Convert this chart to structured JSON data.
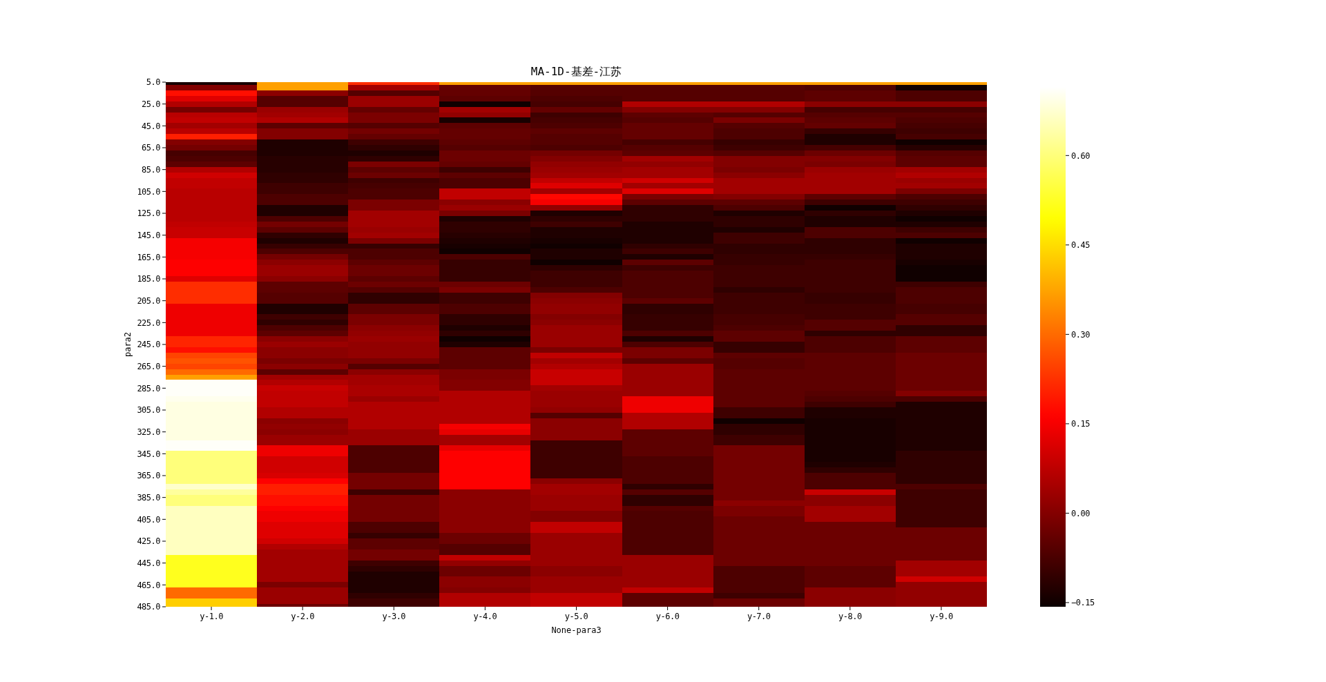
{
  "chart_data": {
    "type": "heatmap",
    "title": "MA-1D-基差-江苏",
    "xlabel": "None-para3",
    "ylabel": "para2",
    "categories": [
      "y-1.0",
      "y-2.0",
      "y-3.0",
      "y-4.0",
      "y-5.0",
      "y-6.0",
      "y-7.0",
      "y-8.0",
      "y-9.0"
    ],
    "y_categories": [
      "5.0",
      null,
      null,
      null,
      "25.0",
      null,
      null,
      null,
      "45.0",
      null,
      null,
      null,
      "65.0",
      null,
      null,
      null,
      "85.0",
      null,
      null,
      null,
      "105.0",
      null,
      null,
      null,
      "125.0",
      null,
      null,
      null,
      "145.0",
      null,
      null,
      null,
      "165.0",
      null,
      null,
      null,
      "185.0",
      null,
      null,
      null,
      "205.0",
      null,
      null,
      null,
      "225.0",
      null,
      null,
      null,
      "245.0",
      null,
      null,
      null,
      "265.0",
      null,
      null,
      null,
      "285.0",
      null,
      null,
      null,
      "305.0",
      null,
      null,
      null,
      "325.0",
      null,
      null,
      null,
      "345.0",
      null,
      null,
      null,
      "365.0",
      null,
      null,
      null,
      "385.0",
      null,
      null,
      null,
      "405.0",
      null,
      null,
      null,
      "425.0",
      null,
      null,
      null,
      "445.0",
      null,
      null,
      null,
      "465.0",
      null,
      null,
      null,
      "485.0"
    ],
    "cells": [
      [
        -0.14,
        0.37,
        0.22,
        0.37,
        0.37,
        0.37,
        0.37,
        0.37,
        0.37
      ],
      [
        0.0,
        0.37,
        0.04,
        -0.04,
        -0.06,
        -0.06,
        -0.06,
        -0.07,
        -0.15
      ],
      [
        0.18,
        0.01,
        -0.06,
        -0.04,
        -0.06,
        -0.06,
        -0.06,
        -0.05,
        -0.07
      ],
      [
        0.12,
        -0.06,
        0.03,
        -0.05,
        -0.07,
        -0.06,
        -0.06,
        -0.05,
        -0.07
      ],
      [
        0.06,
        -0.06,
        0.03,
        -0.15,
        -0.08,
        0.06,
        0.06,
        0.01,
        0.01
      ],
      [
        -0.02,
        0.03,
        -0.04,
        0.04,
        -0.04,
        0.0,
        0.0,
        -0.08,
        -0.08
      ],
      [
        0.07,
        0.04,
        -0.01,
        0.02,
        -0.09,
        -0.05,
        -0.06,
        -0.06,
        -0.06
      ],
      [
        0.08,
        0.06,
        -0.01,
        -0.14,
        -0.08,
        -0.06,
        -0.01,
        -0.05,
        -0.07
      ],
      [
        0.04,
        -0.05,
        -0.06,
        -0.05,
        -0.07,
        -0.04,
        -0.06,
        -0.04,
        -0.08
      ],
      [
        0.07,
        0.0,
        -0.02,
        -0.04,
        -0.05,
        -0.04,
        -0.07,
        -0.1,
        -0.09
      ],
      [
        0.2,
        0.0,
        -0.04,
        -0.04,
        -0.06,
        -0.04,
        -0.07,
        -0.13,
        -0.08
      ],
      [
        0.0,
        -0.13,
        -0.09,
        -0.05,
        -0.06,
        -0.08,
        -0.1,
        -0.13,
        -0.15
      ],
      [
        -0.02,
        -0.13,
        -0.11,
        -0.06,
        -0.07,
        -0.06,
        -0.09,
        -0.08,
        -0.12
      ],
      [
        -0.08,
        -0.13,
        -0.13,
        -0.03,
        -0.02,
        -0.05,
        -0.06,
        -0.03,
        -0.06
      ],
      [
        -0.07,
        -0.12,
        -0.11,
        -0.03,
        0.0,
        0.04,
        0.0,
        0.0,
        -0.05
      ],
      [
        -0.05,
        -0.12,
        -0.01,
        -0.04,
        0.02,
        0.02,
        0.0,
        -0.01,
        -0.05
      ],
      [
        0.06,
        -0.12,
        -0.05,
        -0.09,
        0.03,
        0.04,
        -0.01,
        0.03,
        0.04
      ],
      [
        0.1,
        -0.11,
        -0.03,
        -0.05,
        0.04,
        0.04,
        0.01,
        0.04,
        0.06
      ],
      [
        0.08,
        -0.11,
        -0.09,
        -0.07,
        0.08,
        0.1,
        0.04,
        0.04,
        0.03
      ],
      [
        0.08,
        -0.09,
        -0.08,
        -0.07,
        0.12,
        0.04,
        0.04,
        0.04,
        0.04
      ],
      [
        0.07,
        -0.09,
        -0.07,
        0.08,
        0.04,
        0.12,
        0.04,
        0.04,
        -0.01
      ],
      [
        0.07,
        -0.07,
        -0.07,
        0.08,
        0.17,
        -0.01,
        0.0,
        -0.05,
        -0.07
      ],
      [
        0.07,
        -0.07,
        -0.01,
        0.01,
        0.15,
        -0.05,
        -0.05,
        -0.09,
        -0.09
      ],
      [
        0.07,
        -0.13,
        -0.01,
        0.03,
        0.02,
        -0.11,
        -0.07,
        -0.15,
        -0.11
      ],
      [
        0.07,
        -0.13,
        0.04,
        -0.01,
        -0.13,
        -0.11,
        -0.13,
        -0.11,
        -0.13
      ],
      [
        0.07,
        -0.07,
        0.04,
        -0.13,
        -0.11,
        -0.11,
        -0.11,
        -0.13,
        -0.15
      ],
      [
        0.08,
        -0.02,
        0.04,
        -0.11,
        -0.09,
        -0.13,
        -0.11,
        -0.13,
        -0.13
      ],
      [
        0.09,
        -0.05,
        0.03,
        -0.11,
        -0.13,
        -0.13,
        -0.13,
        -0.07,
        -0.09
      ],
      [
        0.09,
        -0.11,
        0.04,
        -0.12,
        -0.13,
        -0.13,
        -0.09,
        -0.07,
        -0.07
      ],
      [
        0.15,
        -0.13,
        -0.01,
        -0.13,
        -0.14,
        -0.13,
        -0.09,
        -0.11,
        -0.15
      ],
      [
        0.15,
        -0.1,
        -0.1,
        -0.14,
        -0.15,
        -0.11,
        -0.11,
        -0.11,
        -0.13
      ],
      [
        0.15,
        -0.07,
        -0.07,
        -0.15,
        -0.13,
        -0.09,
        -0.11,
        -0.11,
        -0.13
      ],
      [
        0.15,
        -0.02,
        -0.07,
        -0.07,
        -0.13,
        -0.13,
        -0.1,
        -0.1,
        -0.13
      ],
      [
        0.16,
        0.01,
        -0.05,
        -0.1,
        -0.15,
        -0.05,
        -0.1,
        -0.09,
        -0.14
      ],
      [
        0.16,
        0.03,
        -0.03,
        -0.1,
        -0.11,
        -0.09,
        -0.09,
        -0.09,
        -0.15
      ],
      [
        0.16,
        0.03,
        -0.03,
        -0.1,
        -0.09,
        -0.07,
        -0.09,
        -0.09,
        -0.15
      ],
      [
        0.12,
        0.01,
        -0.05,
        -0.1,
        -0.09,
        -0.07,
        -0.09,
        -0.09,
        -0.15
      ],
      [
        0.22,
        -0.05,
        -0.03,
        -0.03,
        -0.09,
        -0.07,
        -0.09,
        -0.09,
        -0.09
      ],
      [
        0.22,
        -0.05,
        -0.06,
        -0.01,
        -0.07,
        -0.07,
        -0.11,
        -0.09,
        -0.07
      ],
      [
        0.22,
        -0.06,
        -0.11,
        -0.09,
        0.0,
        -0.07,
        -0.09,
        -0.1,
        -0.07
      ],
      [
        0.22,
        -0.06,
        -0.11,
        -0.09,
        0.01,
        -0.05,
        -0.09,
        -0.1,
        -0.07
      ],
      [
        0.14,
        -0.13,
        -0.05,
        -0.07,
        0.02,
        -0.11,
        -0.09,
        -0.09,
        -0.08
      ],
      [
        0.14,
        -0.13,
        -0.05,
        -0.07,
        0.02,
        -0.11,
        -0.09,
        -0.09,
        -0.08
      ],
      [
        0.14,
        -0.09,
        -0.01,
        -0.11,
        0.0,
        -0.1,
        -0.08,
        -0.09,
        -0.06
      ],
      [
        0.14,
        -0.11,
        -0.01,
        -0.11,
        0.01,
        -0.1,
        -0.08,
        -0.06,
        -0.06
      ],
      [
        0.14,
        -0.07,
        0.01,
        -0.13,
        0.03,
        -0.1,
        -0.07,
        -0.06,
        -0.11
      ],
      [
        0.14,
        -0.05,
        0.02,
        -0.11,
        0.03,
        -0.07,
        -0.05,
        -0.11,
        -0.11
      ],
      [
        0.21,
        0.01,
        0.03,
        -0.15,
        0.03,
        -0.13,
        -0.05,
        -0.07,
        -0.05
      ],
      [
        0.21,
        0.03,
        0.02,
        -0.13,
        0.03,
        -0.07,
        -0.1,
        -0.07,
        -0.05
      ],
      [
        0.18,
        0.01,
        0.02,
        -0.05,
        -0.01,
        -0.01,
        -0.1,
        -0.07,
        -0.05
      ],
      [
        0.25,
        0.01,
        0.02,
        -0.05,
        0.08,
        -0.01,
        -0.05,
        -0.05,
        -0.03
      ],
      [
        0.27,
        -0.01,
        -0.01,
        -0.05,
        0.04,
        -0.05,
        -0.06,
        -0.05,
        -0.03
      ],
      [
        0.25,
        0.01,
        -0.06,
        -0.05,
        0.06,
        0.03,
        -0.06,
        -0.05,
        -0.03
      ],
      [
        0.3,
        -0.05,
        0.01,
        -0.01,
        0.09,
        0.03,
        -0.05,
        -0.05,
        -0.03
      ],
      [
        0.37,
        0.04,
        0.04,
        -0.01,
        0.09,
        0.03,
        -0.05,
        -0.05,
        -0.03
      ],
      [
        0.71,
        0.06,
        0.04,
        0.0,
        0.09,
        0.03,
        -0.05,
        -0.05,
        -0.03
      ],
      [
        0.71,
        0.09,
        0.05,
        0.0,
        0.04,
        0.03,
        -0.05,
        -0.05,
        -0.03
      ],
      [
        0.71,
        0.08,
        0.05,
        0.06,
        0.03,
        0.03,
        -0.05,
        -0.06,
        0.0
      ],
      [
        0.7,
        0.08,
        0.03,
        0.06,
        0.03,
        0.14,
        -0.05,
        -0.07,
        -0.07
      ],
      [
        0.69,
        0.08,
        0.06,
        0.06,
        0.03,
        0.14,
        -0.05,
        -0.09,
        -0.13
      ],
      [
        0.69,
        0.06,
        0.06,
        0.06,
        0.02,
        0.14,
        -0.09,
        -0.13,
        -0.13
      ],
      [
        0.69,
        0.06,
        0.06,
        0.06,
        -0.06,
        0.06,
        -0.09,
        -0.13,
        -0.13
      ],
      [
        0.69,
        0.01,
        0.06,
        0.06,
        0.01,
        0.06,
        -0.15,
        -0.14,
        -0.13
      ],
      [
        0.69,
        0.02,
        0.06,
        0.15,
        0.01,
        0.06,
        -0.11,
        -0.14,
        -0.13
      ],
      [
        0.69,
        0.01,
        0.03,
        0.13,
        0.01,
        -0.05,
        -0.11,
        -0.14,
        -0.13
      ],
      [
        0.69,
        0.03,
        0.03,
        0.04,
        0.01,
        -0.05,
        -0.09,
        -0.14,
        -0.13
      ],
      [
        0.71,
        0.03,
        0.03,
        0.04,
        -0.09,
        -0.05,
        -0.09,
        -0.14,
        -0.13
      ],
      [
        0.71,
        0.14,
        -0.07,
        0.13,
        -0.09,
        -0.05,
        -0.02,
        -0.14,
        -0.13
      ],
      [
        0.6,
        0.14,
        -0.07,
        0.16,
        -0.09,
        -0.05,
        -0.02,
        -0.14,
        -0.11
      ],
      [
        0.6,
        0.1,
        -0.07,
        0.16,
        -0.09,
        -0.07,
        -0.02,
        -0.14,
        -0.11
      ],
      [
        0.6,
        0.1,
        -0.07,
        0.16,
        -0.09,
        -0.07,
        -0.02,
        -0.13,
        -0.11
      ],
      [
        0.6,
        0.1,
        -0.07,
        0.16,
        -0.09,
        -0.07,
        -0.02,
        -0.11,
        -0.11
      ],
      [
        0.6,
        0.11,
        -0.02,
        0.16,
        -0.09,
        -0.07,
        -0.02,
        -0.07,
        -0.11
      ],
      [
        0.6,
        0.16,
        -0.02,
        0.16,
        0.01,
        -0.07,
        -0.02,
        -0.07,
        -0.11
      ],
      [
        0.67,
        0.2,
        -0.02,
        0.16,
        0.04,
        -0.11,
        -0.02,
        -0.07,
        -0.07
      ],
      [
        0.63,
        0.2,
        -0.09,
        0.01,
        0.04,
        -0.06,
        -0.02,
        0.09,
        -0.09
      ],
      [
        0.6,
        0.18,
        -0.02,
        0.01,
        0.03,
        -0.11,
        -0.02,
        0.01,
        -0.09
      ],
      [
        0.6,
        0.18,
        -0.02,
        0.01,
        0.03,
        -0.11,
        0.01,
        0.01,
        -0.09
      ],
      [
        0.66,
        0.16,
        -0.02,
        0.01,
        0.03,
        -0.06,
        -0.01,
        0.04,
        -0.09
      ],
      [
        0.66,
        0.14,
        -0.02,
        0.01,
        0.0,
        -0.07,
        -0.01,
        0.04,
        -0.09
      ],
      [
        0.66,
        0.14,
        -0.02,
        0.01,
        0.0,
        -0.07,
        -0.03,
        0.04,
        -0.09
      ],
      [
        0.66,
        0.12,
        -0.07,
        0.01,
        0.08,
        -0.07,
        -0.03,
        -0.03,
        -0.09
      ],
      [
        0.66,
        0.12,
        -0.07,
        0.01,
        0.08,
        -0.07,
        -0.03,
        -0.03,
        -0.03
      ],
      [
        0.66,
        0.12,
        -0.1,
        -0.03,
        0.03,
        -0.07,
        -0.03,
        -0.03,
        -0.03
      ],
      [
        0.66,
        0.1,
        -0.05,
        -0.03,
        0.03,
        -0.07,
        -0.03,
        -0.03,
        -0.03
      ],
      [
        0.66,
        0.06,
        -0.05,
        -0.06,
        0.03,
        -0.07,
        -0.03,
        -0.03,
        -0.03
      ],
      [
        0.66,
        0.04,
        -0.02,
        -0.06,
        0.03,
        -0.07,
        -0.03,
        -0.03,
        -0.03
      ],
      [
        0.52,
        0.04,
        -0.02,
        0.08,
        0.03,
        0.03,
        -0.03,
        -0.03,
        -0.03
      ],
      [
        0.52,
        0.04,
        -0.09,
        0.02,
        0.03,
        0.03,
        -0.03,
        -0.03,
        0.04
      ],
      [
        0.52,
        0.04,
        -0.11,
        -0.03,
        0.01,
        0.03,
        -0.07,
        -0.05,
        0.04
      ],
      [
        0.52,
        0.04,
        -0.13,
        -0.03,
        0.01,
        0.03,
        -0.07,
        -0.05,
        0.04
      ],
      [
        0.52,
        0.04,
        -0.13,
        0.01,
        0.03,
        0.03,
        -0.07,
        -0.05,
        0.1
      ],
      [
        0.52,
        -0.01,
        -0.13,
        0.01,
        0.03,
        0.03,
        -0.07,
        -0.05,
        0.02
      ],
      [
        0.3,
        0.03,
        -0.13,
        0.0,
        0.03,
        0.08,
        -0.07,
        0.01,
        0.02
      ],
      [
        0.3,
        0.03,
        -0.11,
        0.06,
        0.08,
        -0.05,
        -0.09,
        0.01,
        0.02
      ],
      [
        0.43,
        0.03,
        -0.09,
        0.06,
        0.08,
        -0.05,
        -0.03,
        0.01,
        0.02
      ],
      [
        0.43,
        -0.03,
        -0.09,
        0.06,
        0.08,
        -0.05,
        -0.03,
        0.01,
        0.02
      ]
    ],
    "clim": [
      -0.157,
      0.715
    ],
    "cticks": [
      {
        "value": -0.15,
        "label": "−0.15"
      },
      {
        "value": 0,
        "label": "0.00"
      },
      0.15,
      {
        "value": 0.3,
        "label": "0.30"
      },
      0.45,
      {
        "value": 0.6,
        "label": "0.60"
      }
    ]
  }
}
